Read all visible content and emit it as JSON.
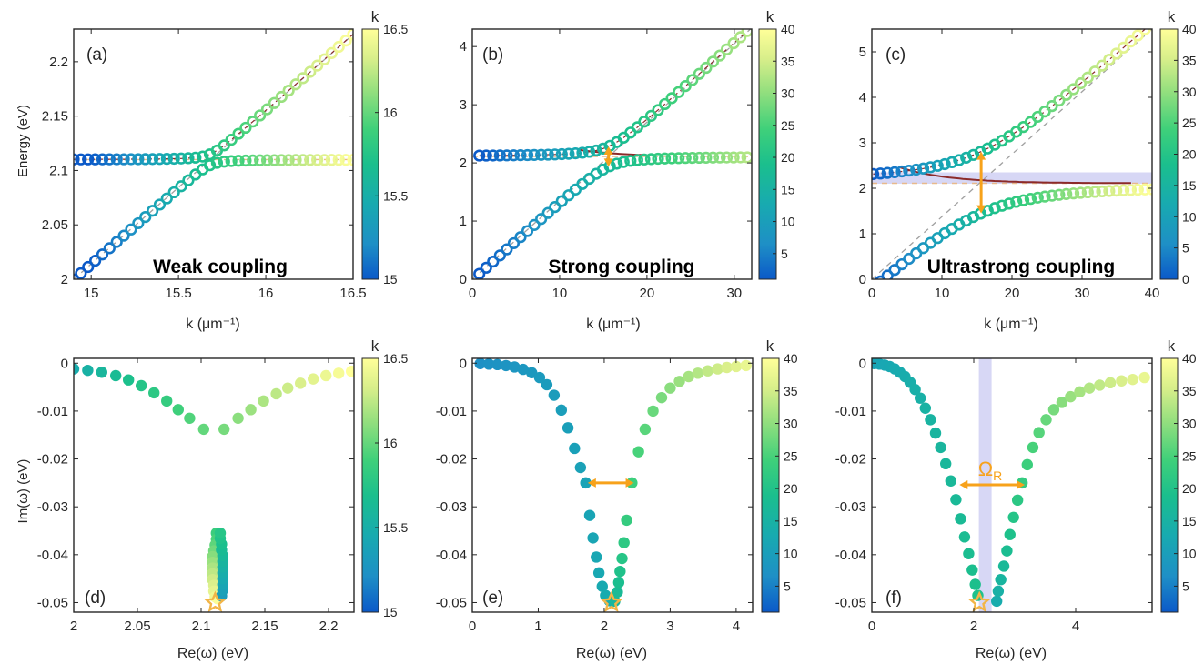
{
  "colormap": [
    "#3d26a8",
    "#0a72d4",
    "#1fb0a8",
    "#27c47e",
    "#43d46b",
    "#b8e27a",
    "#f9fb0e"
  ],
  "colormap_display": [
    "#0b59c8",
    "#1e8fc6",
    "#18aab0",
    "#1bbf8d",
    "#3fd07a",
    "#93df7e",
    "#d7ee8a",
    "#ffff99"
  ],
  "accent_color": "#f7a21b",
  "chart_data": [
    {
      "panel": "a",
      "type": "scatter",
      "panel_label": "(a)",
      "annotation": "Weak coupling",
      "xlabel": "k (μm⁻¹)",
      "ylabel": "Energy (eV)",
      "xlim": [
        14.9,
        16.5
      ],
      "ylim": [
        2.0,
        2.23
      ],
      "xticks": [
        15,
        15.5,
        16,
        16.5
      ],
      "xtick_labels": [
        "15",
        "15.5",
        "16",
        "16.5"
      ],
      "yticks": [
        2.0,
        2.05,
        2.1,
        2.15,
        2.2
      ],
      "ytick_labels": [
        "2",
        "2.05",
        "2.1",
        "2.15",
        "2.2"
      ],
      "colorbar": {
        "label": "k",
        "range": [
          15,
          16.5
        ],
        "ticks": [
          15,
          15.5,
          16,
          16.5
        ],
        "tick_labels": [
          "15",
          "15.5",
          "16",
          "16.5"
        ]
      },
      "model": {
        "kind": "cross",
        "k_min": 14.9,
        "k_max": 16.5,
        "count": 40,
        "exciton_energy": 2.11,
        "photon_e0": 2.0,
        "photon_e1": 2.225,
        "coupling": 0.005
      }
    },
    {
      "panel": "b",
      "type": "scatter",
      "panel_label": "(b)",
      "annotation": "Strong coupling",
      "xlabel": "k (μm⁻¹)",
      "ylabel": "",
      "xlim": [
        0,
        32
      ],
      "ylim": [
        0,
        4.3
      ],
      "xticks": [
        0,
        10,
        20,
        30
      ],
      "xtick_labels": [
        "0",
        "10",
        "20",
        "30"
      ],
      "yticks": [
        0,
        1,
        2,
        3,
        4
      ],
      "ytick_labels": [
        "0",
        "1",
        "2",
        "3",
        "4"
      ],
      "colorbar": {
        "label": "k",
        "range": [
          1,
          40
        ],
        "ticks": [
          5,
          10,
          15,
          20,
          25,
          30,
          35,
          40
        ],
        "tick_labels": [
          "5",
          "10",
          "15",
          "20",
          "25",
          "30",
          "35",
          "40"
        ]
      },
      "model": {
        "kind": "avoided",
        "k_min": 0.8,
        "k_max": 31.5,
        "count": 40,
        "exciton_energy": 2.11,
        "photon_slope": 0.135,
        "rabi_split": 0.35,
        "rabi_k": 15.6
      }
    },
    {
      "panel": "c",
      "type": "scatter",
      "panel_label": "(c)",
      "annotation": "Ultrastrong coupling",
      "xlabel": "k (μm⁻¹)",
      "ylabel": "",
      "xlim": [
        0,
        40
      ],
      "ylim": [
        0,
        5.5
      ],
      "xticks": [
        0,
        10,
        20,
        30,
        40
      ],
      "xtick_labels": [
        "0",
        "10",
        "20",
        "30",
        "40"
      ],
      "yticks": [
        0,
        1,
        2,
        3,
        4,
        5
      ],
      "ytick_labels": [
        "0",
        "1",
        "2",
        "3",
        "4",
        "5"
      ],
      "colorbar": {
        "label": "k",
        "range": [
          0,
          40
        ],
        "ticks": [
          0,
          5,
          10,
          15,
          20,
          25,
          30,
          35,
          40
        ],
        "tick_labels": [
          "0",
          "5",
          "10",
          "15",
          "20",
          "25",
          "30",
          "35",
          "40"
        ]
      },
      "model": {
        "kind": "avoided",
        "k_min": 0.2,
        "k_max": 40,
        "count": 40,
        "exciton_energy": 2.11,
        "photon_slope": 0.1375,
        "rabi_split": 1.36,
        "rabi_k": 15.6,
        "band": [
          2.1,
          2.35
        ]
      }
    },
    {
      "panel": "d",
      "type": "scatter",
      "panel_label": "(d)",
      "xlabel": "Re(ω) (eV)",
      "ylabel": "Im(ω) (eV)",
      "xlim": [
        2.0,
        2.22
      ],
      "ylim": [
        -0.052,
        0.001
      ],
      "xticks": [
        2.0,
        2.05,
        2.1,
        2.15,
        2.2
      ],
      "xtick_labels": [
        "2",
        "2.05",
        "2.1",
        "2.15",
        "2.2"
      ],
      "yticks": [
        0,
        -0.01,
        -0.02,
        -0.03,
        -0.04,
        -0.05
      ],
      "ytick_labels": [
        "0",
        "-0.01",
        "-0.02",
        "-0.03",
        "-0.04",
        "-0.05"
      ],
      "colorbar": {
        "label": "k",
        "range": [
          15,
          16.5
        ],
        "ticks": [
          15,
          15.5,
          16,
          16.5
        ],
        "tick_labels": [
          "15",
          "15.5",
          "16",
          "16.5"
        ]
      },
      "star": [
        2.111,
        -0.05
      ],
      "outer": [
        [
          2.0,
          -0.0012
        ],
        [
          2.011,
          -0.0015
        ],
        [
          2.022,
          -0.0019
        ],
        [
          2.033,
          -0.0026
        ],
        [
          2.043,
          -0.0035
        ],
        [
          2.053,
          -0.0047
        ],
        [
          2.063,
          -0.0062
        ],
        [
          2.073,
          -0.0079
        ],
        [
          2.082,
          -0.0097
        ],
        [
          2.091,
          -0.0115
        ],
        [
          2.102,
          -0.0138
        ],
        [
          2.118,
          -0.0138
        ],
        [
          2.129,
          -0.0115
        ],
        [
          2.139,
          -0.0097
        ],
        [
          2.149,
          -0.0079
        ],
        [
          2.159,
          -0.0064
        ],
        [
          2.168,
          -0.0052
        ],
        [
          2.178,
          -0.0042
        ],
        [
          2.188,
          -0.0033
        ],
        [
          2.198,
          -0.0026
        ],
        [
          2.208,
          -0.0021
        ],
        [
          2.218,
          -0.0017
        ]
      ],
      "inner": [
        [
          2.112,
          -0.0355
        ],
        [
          2.112,
          -0.0368
        ],
        [
          2.111,
          -0.038
        ],
        [
          2.11,
          -0.0392
        ],
        [
          2.109,
          -0.0404
        ],
        [
          2.109,
          -0.0416
        ],
        [
          2.109,
          -0.0428
        ],
        [
          2.109,
          -0.044
        ],
        [
          2.109,
          -0.0452
        ],
        [
          2.11,
          -0.0464
        ],
        [
          2.11,
          -0.0476
        ],
        [
          2.111,
          -0.0488
        ],
        [
          2.113,
          -0.0492
        ],
        [
          2.116,
          -0.0486
        ],
        [
          2.117,
          -0.0474
        ],
        [
          2.117,
          -0.0462
        ],
        [
          2.117,
          -0.045
        ],
        [
          2.117,
          -0.0438
        ],
        [
          2.117,
          -0.0426
        ],
        [
          2.117,
          -0.0414
        ],
        [
          2.117,
          -0.0402
        ],
        [
          2.116,
          -0.039
        ],
        [
          2.116,
          -0.0378
        ],
        [
          2.115,
          -0.0366
        ],
        [
          2.115,
          -0.0355
        ]
      ]
    },
    {
      "panel": "e",
      "type": "scatter",
      "panel_label": "(e)",
      "xlabel": "Re(ω) (eV)",
      "ylabel": "",
      "xlim": [
        0,
        4.25
      ],
      "ylim": [
        -0.052,
        0.001
      ],
      "xticks": [
        0,
        1,
        2,
        3,
        4
      ],
      "xtick_labels": [
        "0",
        "1",
        "2",
        "3",
        "4"
      ],
      "yticks": [
        0,
        -0.01,
        -0.02,
        -0.03,
        -0.04,
        -0.05
      ],
      "ytick_labels": [
        "0",
        "-0.01",
        "-0.02",
        "-0.03",
        "-0.04",
        "-0.05"
      ],
      "colorbar": {
        "label": "k",
        "range": [
          1,
          40
        ],
        "ticks": [
          5,
          10,
          15,
          20,
          25,
          30,
          35,
          40
        ],
        "tick_labels": [
          "5",
          "10",
          "15",
          "20",
          "25",
          "30",
          "35",
          "40"
        ]
      },
      "star": [
        2.11,
        -0.05
      ],
      "arrow": [
        1.75,
        2.45,
        -0.025
      ],
      "points": [
        [
          0.12,
          -0.0001
        ],
        [
          0.25,
          -0.0002
        ],
        [
          0.38,
          -0.0003
        ],
        [
          0.51,
          -0.0005
        ],
        [
          0.64,
          -0.0008
        ],
        [
          0.77,
          -0.0013
        ],
        [
          0.9,
          -0.002
        ],
        [
          1.02,
          -0.003
        ],
        [
          1.13,
          -0.0045
        ],
        [
          1.24,
          -0.0067
        ],
        [
          1.35,
          -0.0098
        ],
        [
          1.45,
          -0.0135
        ],
        [
          1.55,
          -0.0178
        ],
        [
          1.64,
          -0.0218
        ],
        [
          1.72,
          -0.025
        ],
        [
          1.78,
          -0.0318
        ],
        [
          1.83,
          -0.0365
        ],
        [
          1.88,
          -0.0405
        ],
        [
          1.92,
          -0.0438
        ],
        [
          1.97,
          -0.0466
        ],
        [
          2.02,
          -0.0485
        ],
        [
          2.08,
          -0.0496
        ],
        [
          2.16,
          -0.0497
        ],
        [
          2.2,
          -0.0478
        ],
        [
          2.22,
          -0.0458
        ],
        [
          2.24,
          -0.0435
        ],
        [
          2.27,
          -0.0408
        ],
        [
          2.3,
          -0.0375
        ],
        [
          2.34,
          -0.0328
        ],
        [
          2.42,
          -0.025
        ],
        [
          2.52,
          -0.0185
        ],
        [
          2.62,
          -0.0138
        ],
        [
          2.74,
          -0.01
        ],
        [
          2.87,
          -0.0072
        ],
        [
          3.0,
          -0.0052
        ],
        [
          3.14,
          -0.0038
        ],
        [
          3.28,
          -0.0028
        ],
        [
          3.42,
          -0.0021
        ],
        [
          3.57,
          -0.0016
        ],
        [
          3.72,
          -0.0012
        ],
        [
          3.86,
          -0.0009
        ],
        [
          4.0,
          -0.0007
        ],
        [
          4.15,
          -0.0005
        ]
      ]
    },
    {
      "panel": "f",
      "type": "scatter",
      "panel_label": "(f)",
      "xlabel": "Re(ω) (eV)",
      "ylabel": "",
      "xlim": [
        0,
        5.5
      ],
      "ylim": [
        -0.052,
        0.001
      ],
      "xticks": [
        0,
        2,
        4
      ],
      "xtick_labels": [
        "0",
        "2",
        "4"
      ],
      "yticks": [
        0,
        -0.01,
        -0.02,
        -0.03,
        -0.04,
        -0.05
      ],
      "ytick_labels": [
        "0",
        "-0.01",
        "-0.02",
        "-0.03",
        "-0.04",
        "-0.05"
      ],
      "colorbar": {
        "label": "k",
        "range": [
          1,
          40
        ],
        "ticks": [
          5,
          10,
          15,
          20,
          25,
          30,
          35,
          40
        ],
        "tick_labels": [
          "5",
          "10",
          "15",
          "20",
          "25",
          "30",
          "35",
          "40"
        ]
      },
      "star": [
        2.11,
        -0.05
      ],
      "band": [
        2.1,
        2.35
      ],
      "arrow": [
        1.72,
        3.0,
        -0.0254
      ],
      "arrow_label": "Ω",
      "arrow_label_sub": "R",
      "points": [
        [
          0.05,
          -0.0001
        ],
        [
          0.15,
          -0.0002
        ],
        [
          0.25,
          -0.0004
        ],
        [
          0.35,
          -0.0007
        ],
        [
          0.45,
          -0.0012
        ],
        [
          0.55,
          -0.0019
        ],
        [
          0.65,
          -0.0028
        ],
        [
          0.75,
          -0.004
        ],
        [
          0.85,
          -0.0055
        ],
        [
          0.95,
          -0.0073
        ],
        [
          1.05,
          -0.0094
        ],
        [
          1.15,
          -0.0118
        ],
        [
          1.25,
          -0.0146
        ],
        [
          1.35,
          -0.0176
        ],
        [
          1.45,
          -0.021
        ],
        [
          1.55,
          -0.0246
        ],
        [
          1.65,
          -0.0285
        ],
        [
          1.74,
          -0.0325
        ],
        [
          1.82,
          -0.0363
        ],
        [
          1.9,
          -0.0398
        ],
        [
          1.97,
          -0.0432
        ],
        [
          2.03,
          -0.0462
        ],
        [
          2.08,
          -0.0485
        ],
        [
          2.45,
          -0.0497
        ],
        [
          2.48,
          -0.0476
        ],
        [
          2.53,
          -0.0452
        ],
        [
          2.59,
          -0.0424
        ],
        [
          2.65,
          -0.0392
        ],
        [
          2.71,
          -0.0358
        ],
        [
          2.78,
          -0.0322
        ],
        [
          2.86,
          -0.0286
        ],
        [
          2.95,
          -0.025
        ],
        [
          3.05,
          -0.0212
        ],
        [
          3.16,
          -0.0176
        ],
        [
          3.28,
          -0.0145
        ],
        [
          3.42,
          -0.0118
        ],
        [
          3.57,
          -0.0097
        ],
        [
          3.73,
          -0.0082
        ],
        [
          3.9,
          -0.007
        ],
        [
          4.08,
          -0.006
        ],
        [
          4.27,
          -0.0052
        ],
        [
          4.47,
          -0.0046
        ],
        [
          4.68,
          -0.0041
        ],
        [
          4.9,
          -0.0037
        ],
        [
          5.12,
          -0.0034
        ],
        [
          5.35,
          -0.003
        ]
      ]
    }
  ]
}
